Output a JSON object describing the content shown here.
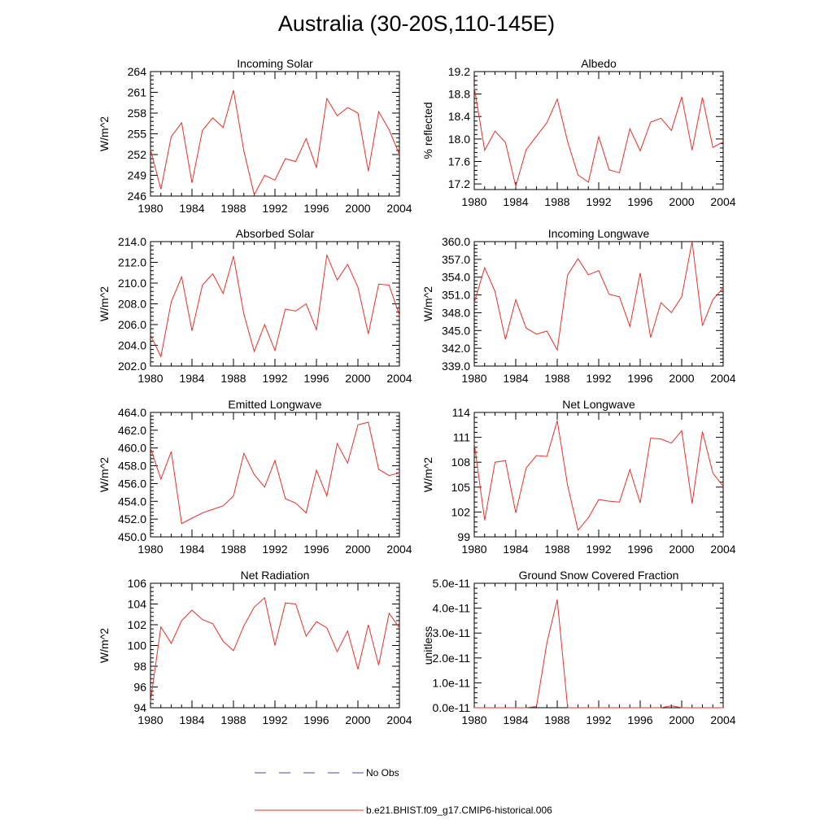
{
  "page": {
    "title": "Australia (30-20S,110-145E)"
  },
  "legend": {
    "obs_label": "No Obs",
    "obs_color": "#4a4aa8",
    "model_label": "b.e21.BHIST.f09_g17.CMIP6-historical.006",
    "model_color": "#e8302a"
  },
  "chart_data": [
    {
      "type": "line",
      "title": "Incoming Solar",
      "ylabel": "W/m^2",
      "xlim": [
        1980,
        2004
      ],
      "ylim": [
        246,
        264
      ],
      "yticks": [
        246,
        249,
        252,
        255,
        258,
        261,
        264
      ],
      "ytick_labels": [
        "246",
        "249",
        "252",
        "255",
        "258",
        "261",
        "264"
      ],
      "xticks": [
        1980,
        1984,
        1988,
        1992,
        1996,
        2000,
        2004
      ],
      "xtick_labels": [
        "1980",
        "1984",
        "1988",
        "1992",
        "1996",
        "2000",
        "2004"
      ],
      "x": [
        1980,
        1981,
        1982,
        1983,
        1984,
        1985,
        1986,
        1987,
        1988,
        1989,
        1990,
        1991,
        1992,
        1993,
        1994,
        1995,
        1996,
        1997,
        1998,
        1999,
        2000,
        2001,
        2002,
        2003,
        2004
      ],
      "series": [
        {
          "values": [
            252.7,
            247.0,
            254.6,
            256.6,
            247.9,
            255.5,
            257.3,
            255.9,
            261.3,
            252.5,
            246.2,
            249.0,
            248.3,
            251.4,
            251.0,
            254.3,
            250.1,
            260.1,
            257.6,
            258.8,
            258.0,
            249.6,
            258.2,
            255.6,
            252.0
          ]
        }
      ]
    },
    {
      "type": "line",
      "title": "Albedo",
      "ylabel": "% reflected",
      "xlim": [
        1980,
        2004
      ],
      "ylim": [
        17.1,
        19.2
      ],
      "yticks": [
        17.2,
        17.6,
        18.0,
        18.4,
        18.8,
        19.2
      ],
      "ytick_labels": [
        "17.2",
        "17.6",
        "18.0",
        "18.4",
        "18.8",
        "19.2"
      ],
      "xticks": [
        1980,
        1984,
        1988,
        1992,
        1996,
        2000,
        2004
      ],
      "xtick_labels": [
        "1980",
        "1984",
        "1988",
        "1992",
        "1996",
        "2000",
        "2004"
      ],
      "x": [
        1980,
        1981,
        1982,
        1983,
        1984,
        1985,
        1986,
        1987,
        1988,
        1989,
        1990,
        1991,
        1992,
        1993,
        1994,
        1995,
        1996,
        1997,
        1998,
        1999,
        2000,
        2001,
        2002,
        2003,
        2004
      ],
      "series": [
        {
          "values": [
            18.92,
            17.8,
            18.14,
            17.94,
            17.16,
            17.81,
            18.05,
            18.29,
            18.71,
            17.95,
            17.36,
            17.23,
            18.04,
            17.45,
            17.4,
            18.18,
            17.79,
            18.3,
            18.37,
            18.15,
            18.75,
            17.8,
            18.74,
            17.85,
            17.95
          ]
        }
      ]
    },
    {
      "type": "line",
      "title": "Absorbed Solar",
      "ylabel": "W/m^2",
      "xlim": [
        1980,
        2004
      ],
      "ylim": [
        202.0,
        214.0
      ],
      "yticks": [
        202,
        204,
        206,
        208,
        210,
        212,
        214
      ],
      "ytick_labels": [
        "202.0",
        "204.0",
        "206.0",
        "208.0",
        "210.0",
        "212.0",
        "214.0"
      ],
      "xticks": [
        1980,
        1984,
        1988,
        1992,
        1996,
        2000,
        2004
      ],
      "xtick_labels": [
        "1980",
        "1984",
        "1988",
        "1992",
        "1996",
        "2000",
        "2004"
      ],
      "x": [
        1980,
        1981,
        1982,
        1983,
        1984,
        1985,
        1986,
        1987,
        1988,
        1989,
        1990,
        1991,
        1992,
        1993,
        1994,
        1995,
        1996,
        1997,
        1998,
        1999,
        2000,
        2001,
        2002,
        2003,
        2004
      ],
      "series": [
        {
          "values": [
            205.0,
            202.9,
            208.2,
            210.6,
            205.4,
            209.8,
            210.9,
            209.0,
            212.6,
            207.0,
            203.4,
            206.0,
            203.5,
            207.5,
            207.3,
            208.0,
            205.5,
            212.7,
            210.3,
            211.8,
            209.6,
            205.1,
            209.9,
            209.8,
            206.9
          ]
        }
      ]
    },
    {
      "type": "line",
      "title": "Incoming Longwave",
      "ylabel": "W/m^2",
      "xlim": [
        1980,
        2004
      ],
      "ylim": [
        339.0,
        360.0
      ],
      "yticks": [
        339,
        342,
        345,
        348,
        351,
        354,
        357,
        360
      ],
      "ytick_labels": [
        "339.0",
        "342.0",
        "345.0",
        "348.0",
        "351.0",
        "354.0",
        "357.0",
        "360.0"
      ],
      "xticks": [
        1980,
        1984,
        1988,
        1992,
        1996,
        2000,
        2004
      ],
      "xtick_labels": [
        "1980",
        "1984",
        "1988",
        "1992",
        "1996",
        "2000",
        "2004"
      ],
      "x": [
        1980,
        1981,
        1982,
        1983,
        1984,
        1985,
        1986,
        1987,
        1988,
        1989,
        1990,
        1991,
        1992,
        1993,
        1994,
        1995,
        1996,
        1997,
        1998,
        1999,
        2000,
        2001,
        2002,
        2003,
        2004
      ],
      "series": [
        {
          "values": [
            349.7,
            355.6,
            351.6,
            343.5,
            350.2,
            345.4,
            344.4,
            344.9,
            341.7,
            354.4,
            357.1,
            354.4,
            355.1,
            351.1,
            350.7,
            345.7,
            354.7,
            343.8,
            349.7,
            348.0,
            350.7,
            360.0,
            345.8,
            350.2,
            352.2
          ]
        }
      ]
    },
    {
      "type": "line",
      "title": "Emitted Longwave",
      "ylabel": "W/m^2",
      "xlim": [
        1980,
        2004
      ],
      "ylim": [
        450.0,
        464.0
      ],
      "yticks": [
        450,
        452,
        454,
        456,
        458,
        460,
        462,
        464
      ],
      "ytick_labels": [
        "450.0",
        "452.0",
        "454.0",
        "456.0",
        "458.0",
        "460.0",
        "462.0",
        "464.0"
      ],
      "xticks": [
        1980,
        1984,
        1988,
        1992,
        1996,
        2000,
        2004
      ],
      "xtick_labels": [
        "1980",
        "1984",
        "1988",
        "1992",
        "1996",
        "2000",
        "2004"
      ],
      "x": [
        1980,
        1981,
        1982,
        1983,
        1984,
        1985,
        1986,
        1987,
        1988,
        1989,
        1990,
        1991,
        1992,
        1993,
        1994,
        1995,
        1996,
        1997,
        1998,
        1999,
        2000,
        2001,
        2002,
        2003,
        2004
      ],
      "series": [
        {
          "values": [
            460.0,
            456.5,
            459.6,
            451.5,
            452.1,
            452.7,
            453.1,
            453.5,
            454.6,
            459.4,
            457.0,
            455.6,
            458.6,
            454.3,
            453.8,
            452.7,
            457.5,
            454.6,
            460.5,
            458.3,
            462.6,
            462.9,
            457.6,
            456.9,
            457.2
          ]
        }
      ]
    },
    {
      "type": "line",
      "title": "Net Longwave",
      "ylabel": "W/m^2",
      "xlim": [
        1980,
        2004
      ],
      "ylim": [
        99,
        114
      ],
      "yticks": [
        99,
        102,
        105,
        108,
        111,
        114
      ],
      "ytick_labels": [
        "99",
        "102",
        "105",
        "108",
        "111",
        "114"
      ],
      "xticks": [
        1980,
        1984,
        1988,
        1992,
        1996,
        2000,
        2004
      ],
      "xtick_labels": [
        "1980",
        "1984",
        "1988",
        "1992",
        "1996",
        "2000",
        "2004"
      ],
      "x": [
        1980,
        1981,
        1982,
        1983,
        1984,
        1985,
        1986,
        1987,
        1988,
        1989,
        1990,
        1991,
        1992,
        1993,
        1994,
        1995,
        1996,
        1997,
        1998,
        1999,
        2000,
        2001,
        2002,
        2003,
        2004
      ],
      "series": [
        {
          "values": [
            110.3,
            101.0,
            108.0,
            108.2,
            101.9,
            107.3,
            108.8,
            108.7,
            113.0,
            105.2,
            99.8,
            101.3,
            103.5,
            103.3,
            103.2,
            107.1,
            103.1,
            110.9,
            110.8,
            110.3,
            111.8,
            103.0,
            111.7,
            106.7,
            105.1
          ]
        }
      ]
    },
    {
      "type": "line",
      "title": "Net Radiation",
      "ylabel": "W/m^2",
      "xlim": [
        1980,
        2004
      ],
      "ylim": [
        94,
        106
      ],
      "yticks": [
        94,
        96,
        98,
        100,
        102,
        104,
        106
      ],
      "ytick_labels": [
        "94",
        "96",
        "98",
        "100",
        "102",
        "104",
        "106"
      ],
      "xticks": [
        1980,
        1984,
        1988,
        1992,
        1996,
        2000,
        2004
      ],
      "xtick_labels": [
        "1980",
        "1984",
        "1988",
        "1992",
        "1996",
        "2000",
        "2004"
      ],
      "x": [
        1980,
        1981,
        1982,
        1983,
        1984,
        1985,
        1986,
        1987,
        1988,
        1989,
        1990,
        1991,
        1992,
        1993,
        1994,
        1995,
        1996,
        1997,
        1998,
        1999,
        2000,
        2001,
        2002,
        2003,
        2004
      ],
      "series": [
        {
          "values": [
            94.6,
            101.8,
            100.2,
            102.4,
            103.4,
            102.5,
            102.1,
            100.4,
            99.5,
            101.9,
            103.7,
            104.6,
            100.0,
            104.1,
            104.0,
            100.9,
            102.3,
            101.7,
            99.4,
            101.4,
            97.7,
            102.0,
            98.1,
            103.1,
            101.7
          ]
        }
      ]
    },
    {
      "type": "line",
      "title": "Ground Snow Covered Fraction",
      "ylabel": "unitless",
      "xlim": [
        1980,
        2004
      ],
      "ylim": [
        0,
        5e-11
      ],
      "yticks": [
        0,
        1e-11,
        2e-11,
        3e-11,
        4e-11,
        5e-11
      ],
      "ytick_labels": [
        "0.0e-11",
        "1.0e-11",
        "2.0e-11",
        "3.0e-11",
        "4.0e-11",
        "5.0e-11"
      ],
      "xticks": [
        1980,
        1984,
        1988,
        1992,
        1996,
        2000,
        2004
      ],
      "xtick_labels": [
        "1980",
        "1984",
        "1988",
        "1992",
        "1996",
        "2000",
        "2004"
      ],
      "x": [
        1980,
        1981,
        1982,
        1983,
        1984,
        1985,
        1986,
        1987,
        1988,
        1989,
        1990,
        1991,
        1992,
        1993,
        1994,
        1995,
        1996,
        1997,
        1998,
        1999,
        2000,
        2001,
        2002,
        2003,
        2004
      ],
      "series": [
        {
          "values": [
            0,
            0,
            0,
            0,
            0,
            0,
            5e-13,
            2.6e-11,
            4.35e-11,
            0,
            0,
            0,
            0,
            0,
            0,
            0,
            0,
            0,
            0,
            8e-13,
            0,
            0,
            0,
            0,
            0
          ]
        }
      ]
    }
  ]
}
